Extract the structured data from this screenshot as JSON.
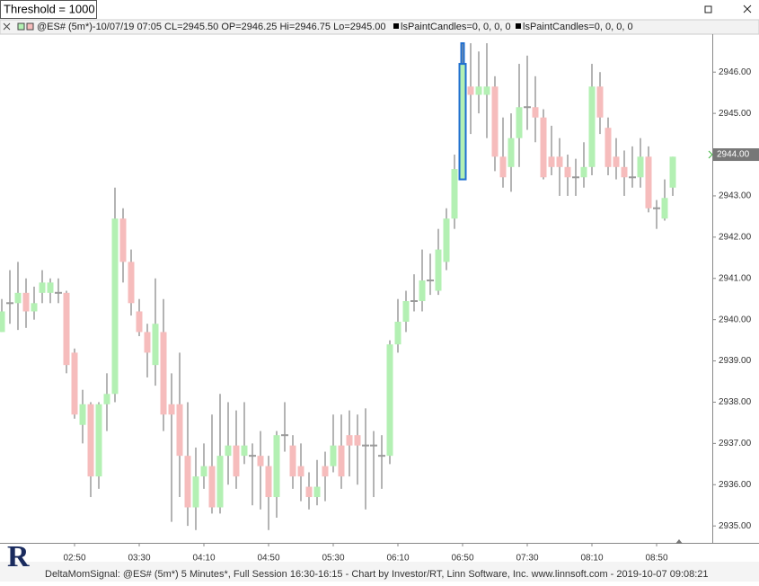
{
  "window": {
    "title": "Threshold = 1000"
  },
  "chart_data": {
    "type": "candlestick",
    "legend_text": "@ES# (5m*)-10/07/19 07:05 CL=2945.50 OP=2946.25 Hi=2946.75 Lo=2945.00",
    "indicators": [
      "lsPaintCandles=0, 0, 0, 0",
      "lsPaintCandles=0, 0, 0, 0"
    ],
    "footer": "DeltaMomSignal: @ES# (5m*) 5 Minutes*, Full Session 16:30-16:15 - Chart by Investor/RT, Linn Software, Inc. www.linnsoft.com - 2019-10-07 09:08:21",
    "logo": "R",
    "categories": [
      null,
      null,
      null,
      null,
      null,
      null,
      null,
      null,
      null,
      "02:50",
      null,
      null,
      null,
      null,
      null,
      null,
      null,
      "03:30",
      null,
      null,
      null,
      null,
      null,
      null,
      null,
      "04:10",
      null,
      null,
      null,
      null,
      null,
      null,
      null,
      "04:50",
      null,
      null,
      null,
      null,
      null,
      null,
      null,
      "05:30",
      null,
      null,
      null,
      null,
      null,
      null,
      null,
      "06:10",
      null,
      null,
      null,
      null,
      null,
      null,
      null,
      "06:50",
      null,
      null,
      null,
      null,
      null,
      null,
      null,
      "07:30",
      null,
      null,
      null,
      null,
      null,
      null,
      null,
      "08:10",
      null,
      null,
      null,
      null,
      null,
      null,
      null,
      "08:50",
      null,
      null
    ],
    "open": [
      2939.7,
      2940.4,
      2940.4,
      2940.65,
      2940.2,
      2940.65,
      2940.65,
      2940.65,
      2940.65,
      2939.2,
      2937.45,
      2937.95,
      2936.2,
      2937.95,
      2938.2,
      2942.45,
      2941.4,
      2940.2,
      2939.7,
      2938.9,
      2939.7,
      2937.95,
      2937.95,
      2936.7,
      2935.45,
      2936.2,
      2936.45,
      2935.45,
      2936.7,
      2936.95,
      2936.7,
      2936.7,
      2936.7,
      2936.45,
      2935.7,
      2937.2,
      2936.95,
      2936.45,
      2935.95,
      2935.7,
      2936.45,
      2936.45,
      2936.95,
      2937.2,
      2937.2,
      2936.95,
      2936.95,
      2936.7,
      2936.7,
      2939.4,
      2939.95,
      2940.45,
      2940.45,
      2940.95,
      2940.7,
      2941.4,
      2942.45,
      2943.4,
      2945.65,
      2945.45,
      2945.45,
      2945.65,
      2943.95,
      2943.7,
      2944.4,
      2945.15,
      2945.15,
      2944.9,
      2943.95,
      2943.95,
      2943.7,
      2943.45,
      2943.45,
      2943.7,
      2945.65,
      2944.65,
      2943.95,
      2943.7,
      2943.45,
      2943.45,
      2943.95,
      2942.7,
      2942.45,
      2943.2
    ],
    "high": [
      2940.5,
      2941.2,
      2941.4,
      2941.0,
      2940.8,
      2941.2,
      2941.0,
      2941.0,
      2940.7,
      2939.3,
      2938.3,
      2938.0,
      2938.0,
      2938.7,
      2943.2,
      2942.7,
      2941.7,
      2940.5,
      2939.9,
      2941.0,
      2940.5,
      2938.7,
      2939.2,
      2938.0,
      2936.9,
      2937.0,
      2937.7,
      2938.2,
      2938.0,
      2937.8,
      2938.0,
      2937.0,
      2937.3,
      2936.7,
      2937.3,
      2938.0,
      2937.2,
      2937.0,
      2936.3,
      2936.6,
      2936.8,
      2937.7,
      2937.7,
      2937.8,
      2937.7,
      2937.85,
      2937.3,
      2937.2,
      2939.5,
      2940.5,
      2940.7,
      2941.1,
      2941.7,
      2941.6,
      2942.2,
      2942.7,
      2944.0,
      2946.7,
      2946.7,
      2946.5,
      2946.7,
      2945.9,
      2944.9,
      2945.0,
      2946.2,
      2946.4,
      2945.9,
      2945.1,
      2944.7,
      2944.4,
      2944.0,
      2943.9,
      2944.3,
      2946.2,
      2946.0,
      2944.9,
      2944.4,
      2944.1,
      2944.2,
      2944.4,
      2944.2,
      2942.9,
      2943.4,
      2943.95
    ],
    "low": [
      2939.7,
      2939.9,
      2939.75,
      2939.8,
      2940.0,
      2940.4,
      2940.4,
      2940.4,
      2938.7,
      2937.6,
      2937.0,
      2935.7,
      2935.9,
      2937.3,
      2938.0,
      2940.9,
      2940.1,
      2939.6,
      2938.6,
      2938.4,
      2937.3,
      2935.1,
      2935.7,
      2935.0,
      2934.9,
      2935.9,
      2935.3,
      2935.3,
      2936.0,
      2935.9,
      2936.5,
      2935.5,
      2935.4,
      2934.9,
      2935.2,
      2936.8,
      2935.9,
      2935.6,
      2935.4,
      2935.5,
      2935.6,
      2936.3,
      2935.9,
      2936.2,
      2936.0,
      2935.4,
      2935.7,
      2935.9,
      2936.5,
      2939.2,
      2939.7,
      2940.2,
      2940.2,
      2940.6,
      2940.6,
      2941.2,
      2942.2,
      2943.4,
      2944.5,
      2945.0,
      2944.4,
      2943.6,
      2943.2,
      2943.1,
      2943.7,
      2944.6,
      2944.3,
      2943.4,
      2943.5,
      2943.0,
      2943.0,
      2943.0,
      2943.2,
      2943.5,
      2944.5,
      2943.5,
      2943.4,
      2943.0,
      2943.2,
      2943.2,
      2942.6,
      2942.2,
      2942.4,
      2943.0
    ],
    "close": [
      2940.2,
      2940.4,
      2940.65,
      2940.2,
      2940.4,
      2940.9,
      2940.9,
      2940.65,
      2938.9,
      2937.7,
      2937.95,
      2936.2,
      2937.95,
      2938.2,
      2942.45,
      2941.4,
      2940.4,
      2939.7,
      2939.2,
      2939.9,
      2937.7,
      2937.7,
      2936.7,
      2935.45,
      2936.2,
      2936.45,
      2935.45,
      2936.7,
      2936.95,
      2936.2,
      2936.95,
      2936.7,
      2936.45,
      2935.7,
      2937.2,
      2937.2,
      2936.2,
      2936.2,
      2935.7,
      2935.95,
      2936.2,
      2936.95,
      2936.2,
      2936.95,
      2936.95,
      2936.95,
      2936.95,
      2936.7,
      2939.4,
      2939.95,
      2940.45,
      2940.45,
      2940.95,
      2940.95,
      2941.7,
      2942.45,
      2943.65,
      2946.2,
      2945.45,
      2945.65,
      2945.65,
      2943.95,
      2943.45,
      2944.4,
      2945.15,
      2945.15,
      2944.9,
      2943.45,
      2943.7,
      2943.7,
      2943.45,
      2943.45,
      2943.7,
      2945.65,
      2944.9,
      2943.7,
      2943.7,
      2943.45,
      2943.45,
      2943.95,
      2942.7,
      2942.7,
      2942.95,
      2943.95
    ],
    "up_color": "#b3f0b3",
    "down_color": "#f6bcbc",
    "wick_color": "#9a9a9a",
    "selected_index": 57,
    "selected_color": "#1f6fd0",
    "ylim": [
      2934.59,
      2946.92
    ],
    "yticks": [
      {
        "value": 2935,
        "label": "2935.00"
      },
      {
        "value": 2936,
        "label": "2936.00"
      },
      {
        "value": 2937,
        "label": "2937.00"
      },
      {
        "value": 2938,
        "label": "2938.00"
      },
      {
        "value": 2939,
        "label": "2939.00"
      },
      {
        "value": 2940,
        "label": "2940.00"
      },
      {
        "value": 2941,
        "label": "2941.00"
      },
      {
        "value": 2942,
        "label": "2942.00"
      },
      {
        "value": 2943,
        "label": "2943.00"
      },
      {
        "value": 2944,
        "label": "2944.00"
      },
      {
        "value": 2945,
        "label": "2945.00"
      },
      {
        "value": 2946,
        "label": "2946.00"
      }
    ],
    "last_price": {
      "value": 2944,
      "label": "2944.00"
    },
    "grid": false
  }
}
